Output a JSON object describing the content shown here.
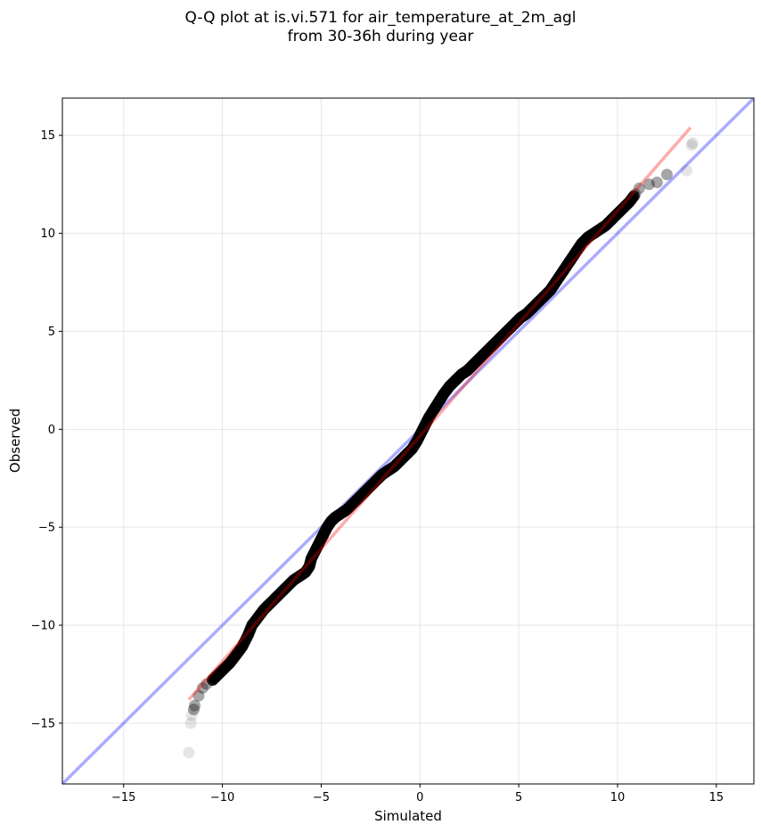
{
  "chart_data": {
    "type": "scatter",
    "title_lines": [
      "Q-Q plot at is.vi.571 for air_temperature_at_2m_agl",
      "from 30-36h during year"
    ],
    "xlabel": "Simulated",
    "ylabel": "Observed",
    "xlim": [
      -18.1,
      16.9
    ],
    "ylim": [
      -18.1,
      16.9
    ],
    "xticks": [
      -15,
      -10,
      -5,
      0,
      5,
      10,
      15
    ],
    "yticks": [
      -15,
      -10,
      -5,
      0,
      5,
      10,
      15
    ],
    "xtick_labels": [
      "−15",
      "−10",
      "−5",
      "0",
      "5",
      "10",
      "15"
    ],
    "ytick_labels": [
      "−15",
      "−10",
      "−5",
      "0",
      "5",
      "10",
      "15"
    ],
    "grid": true,
    "reference_line": {
      "color": "#0000ff",
      "x": [
        -18.1,
        16.9
      ],
      "y": [
        -18.1,
        16.9
      ]
    },
    "fit_line": {
      "color": "#ff0000",
      "x": [
        -11.7,
        13.7
      ],
      "y": [
        -13.8,
        15.4
      ]
    },
    "points": [
      [
        -11.7,
        -16.5
      ],
      [
        -11.6,
        -15.0
      ],
      [
        -11.55,
        -14.6
      ],
      [
        -11.45,
        -14.3
      ],
      [
        -11.4,
        -14.1
      ],
      [
        -11.2,
        -13.6
      ],
      [
        -11.0,
        -13.2
      ],
      [
        -10.8,
        -13.0
      ],
      [
        -10.5,
        -12.8
      ],
      [
        -10.2,
        -12.5
      ],
      [
        -9.9,
        -12.2
      ],
      [
        -9.6,
        -11.9
      ],
      [
        -9.3,
        -11.5
      ],
      [
        -9.0,
        -11.1
      ],
      [
        -8.7,
        -10.5
      ],
      [
        -8.5,
        -10.0
      ],
      [
        -8.2,
        -9.6
      ],
      [
        -7.9,
        -9.2
      ],
      [
        -7.6,
        -8.9
      ],
      [
        -7.3,
        -8.6
      ],
      [
        -7.0,
        -8.3
      ],
      [
        -6.7,
        -8.0
      ],
      [
        -6.4,
        -7.7
      ],
      [
        -6.1,
        -7.5
      ],
      [
        -5.8,
        -7.3
      ],
      [
        -5.6,
        -7.0
      ],
      [
        -5.5,
        -6.6
      ],
      [
        -5.3,
        -6.2
      ],
      [
        -5.1,
        -5.8
      ],
      [
        -4.9,
        -5.4
      ],
      [
        -4.7,
        -5.0
      ],
      [
        -4.5,
        -4.7
      ],
      [
        -4.3,
        -4.5
      ],
      [
        -4.0,
        -4.3
      ],
      [
        -3.7,
        -4.1
      ],
      [
        -3.4,
        -3.8
      ],
      [
        -3.1,
        -3.5
      ],
      [
        -2.8,
        -3.2
      ],
      [
        -2.5,
        -2.9
      ],
      [
        -2.2,
        -2.6
      ],
      [
        -1.9,
        -2.3
      ],
      [
        -1.6,
        -2.1
      ],
      [
        -1.3,
        -1.9
      ],
      [
        -1.0,
        -1.6
      ],
      [
        -0.7,
        -1.3
      ],
      [
        -0.4,
        -1.0
      ],
      [
        -0.15,
        -0.6
      ],
      [
        0.05,
        -0.2
      ],
      [
        0.25,
        0.2
      ],
      [
        0.45,
        0.6
      ],
      [
        0.7,
        1.0
      ],
      [
        0.95,
        1.4
      ],
      [
        1.2,
        1.8
      ],
      [
        1.5,
        2.2
      ],
      [
        1.8,
        2.5
      ],
      [
        2.1,
        2.8
      ],
      [
        2.4,
        3.0
      ],
      [
        2.7,
        3.3
      ],
      [
        3.0,
        3.6
      ],
      [
        3.3,
        3.9
      ],
      [
        3.6,
        4.2
      ],
      [
        3.9,
        4.5
      ],
      [
        4.2,
        4.8
      ],
      [
        4.5,
        5.1
      ],
      [
        4.8,
        5.4
      ],
      [
        5.1,
        5.7
      ],
      [
        5.4,
        5.9
      ],
      [
        5.7,
        6.2
      ],
      [
        6.0,
        6.5
      ],
      [
        6.3,
        6.8
      ],
      [
        6.6,
        7.1
      ],
      [
        6.8,
        7.4
      ],
      [
        7.0,
        7.7
      ],
      [
        7.2,
        8.0
      ],
      [
        7.4,
        8.3
      ],
      [
        7.6,
        8.6
      ],
      [
        7.8,
        8.9
      ],
      [
        8.0,
        9.2
      ],
      [
        8.2,
        9.5
      ],
      [
        8.5,
        9.8
      ],
      [
        8.8,
        10.0
      ],
      [
        9.1,
        10.2
      ],
      [
        9.4,
        10.4
      ],
      [
        9.7,
        10.7
      ],
      [
        10.0,
        11.0
      ],
      [
        10.3,
        11.3
      ],
      [
        10.6,
        11.6
      ],
      [
        10.9,
        12.0
      ],
      [
        11.1,
        12.3
      ],
      [
        11.6,
        12.5
      ],
      [
        12.0,
        12.6
      ],
      [
        12.5,
        13.0
      ],
      [
        13.5,
        13.2
      ],
      [
        13.75,
        14.5
      ],
      [
        13.8,
        14.6
      ]
    ]
  }
}
